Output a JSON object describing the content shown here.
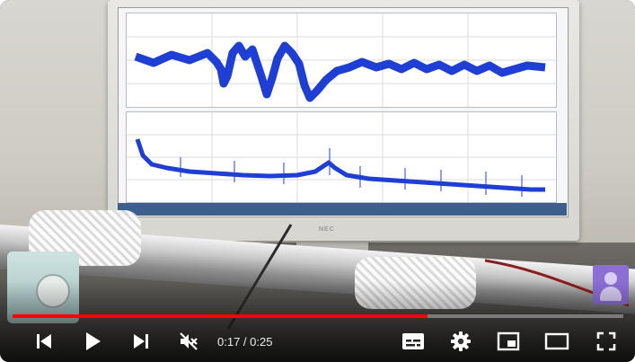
{
  "video": {
    "brand": "NEC",
    "progress": 0.68
  },
  "controls": {
    "prev_icon": "skip-previous-icon",
    "play_icon": "play-icon",
    "next_icon": "skip-next-icon",
    "mute_icon": "volume-muted-icon",
    "current_time": "0:17",
    "separator": " / ",
    "duration": "0:25",
    "subtitles_icon": "subtitles-icon",
    "settings_icon": "settings-gear-icon",
    "miniplayer_icon": "miniplayer-icon",
    "theater_icon": "theater-mode-icon",
    "fullscreen_icon": "fullscreen-icon",
    "accent_color": "#ff0000"
  }
}
